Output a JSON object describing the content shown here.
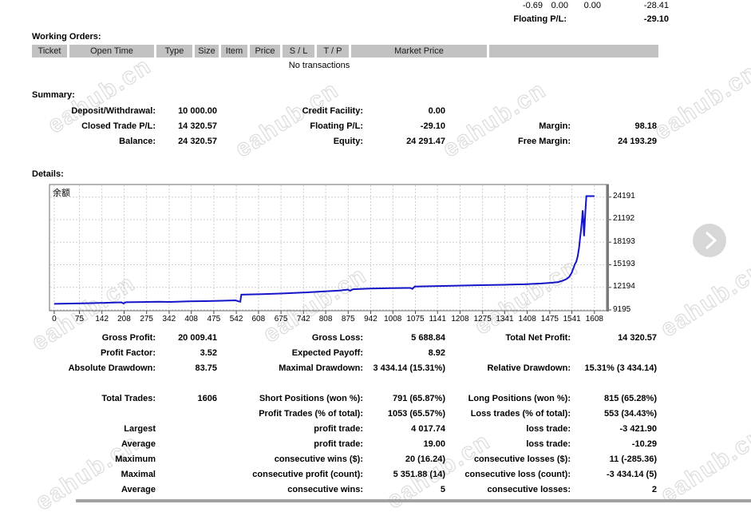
{
  "watermark": {
    "text": "eahub.cn"
  },
  "top_strip": {
    "values": [
      "-0.69",
      "0.00",
      "0.00",
      "-28.41"
    ],
    "label": "Floating P/L:",
    "value": "-29.10"
  },
  "working_orders": {
    "title": "Working Orders:",
    "columns": [
      "Ticket",
      "Open Time",
      "Type",
      "Size",
      "Item",
      "Price",
      "S / L",
      "T / P",
      "Market Price",
      ""
    ],
    "empty_message": "No transactions"
  },
  "summary": {
    "title": "Summary:",
    "deposit_withdrawal": {
      "label": "Deposit/Withdrawal:",
      "value": "10 000.00"
    },
    "credit_facility": {
      "label": "Credit Facility:",
      "value": "0.00"
    },
    "closed_trade_pl": {
      "label": "Closed Trade P/L:",
      "value": "14 320.57"
    },
    "floating_pl": {
      "label": "Floating P/L:",
      "value": "-29.10"
    },
    "margin": {
      "label": "Margin:",
      "value": "98.18"
    },
    "balance": {
      "label": "Balance:",
      "value": "24 320.57"
    },
    "equity": {
      "label": "Equity:",
      "value": "24 291.47"
    },
    "free_margin": {
      "label": "Free Margin:",
      "value": "24 193.29"
    }
  },
  "details": {
    "title": "Details:"
  },
  "chart_data": {
    "type": "line",
    "title": "余额",
    "xlabel": "",
    "ylabel": "",
    "grid": true,
    "legend": "none",
    "line_color": "#1414c8",
    "x_ticks": [
      0,
      75,
      142,
      208,
      275,
      342,
      408,
      475,
      542,
      608,
      675,
      742,
      808,
      875,
      942,
      1008,
      1075,
      1141,
      1208,
      1275,
      1341,
      1408,
      1475,
      1541,
      1608
    ],
    "y_ticks": [
      9195,
      12194,
      15193,
      18193,
      21192,
      24191
    ],
    "xlim": [
      -14,
      1644
    ],
    "ylim": [
      9090,
      25860
    ],
    "series": [
      {
        "name": "Balance (余额)",
        "points": [
          [
            0,
            10000
          ],
          [
            50,
            10045
          ],
          [
            100,
            10090
          ],
          [
            150,
            10140
          ],
          [
            200,
            10205
          ],
          [
            206,
            10060
          ],
          [
            213,
            10215
          ],
          [
            260,
            10245
          ],
          [
            310,
            10280
          ],
          [
            345,
            10260
          ],
          [
            400,
            10330
          ],
          [
            450,
            10365
          ],
          [
            500,
            10415
          ],
          [
            540,
            10465
          ],
          [
            549,
            10330
          ],
          [
            554,
            10285
          ],
          [
            557,
            11220
          ],
          [
            620,
            11300
          ],
          [
            680,
            11385
          ],
          [
            740,
            11500
          ],
          [
            800,
            11650
          ],
          [
            850,
            11780
          ],
          [
            874,
            11900
          ],
          [
            881,
            11745
          ],
          [
            889,
            11950
          ],
          [
            940,
            12030
          ],
          [
            1000,
            12090
          ],
          [
            1060,
            12115
          ],
          [
            1066,
            11985
          ],
          [
            1073,
            12300
          ],
          [
            1130,
            12360
          ],
          [
            1200,
            12425
          ],
          [
            1270,
            12485
          ],
          [
            1340,
            12535
          ],
          [
            1400,
            12605
          ],
          [
            1450,
            12705
          ],
          [
            1480,
            12805
          ],
          [
            1500,
            12905
          ],
          [
            1515,
            13100
          ],
          [
            1525,
            13305
          ],
          [
            1533,
            13600
          ],
          [
            1540,
            14100
          ],
          [
            1546,
            14800
          ],
          [
            1550,
            15300
          ],
          [
            1554,
            15610
          ],
          [
            1558,
            16300
          ],
          [
            1562,
            17400
          ],
          [
            1565,
            18600
          ],
          [
            1568,
            19800
          ],
          [
            1571,
            21200
          ],
          [
            1573,
            22430
          ],
          [
            1575,
            21000
          ],
          [
            1577,
            18996
          ],
          [
            1579,
            20500
          ],
          [
            1581,
            22300
          ],
          [
            1584,
            24320
          ],
          [
            1608,
            24320
          ]
        ]
      }
    ]
  },
  "results": {
    "gross_profit": {
      "label": "Gross Profit:",
      "value": "20 009.41"
    },
    "gross_loss": {
      "label": "Gross Loss:",
      "value": "5 688.84"
    },
    "total_net_profit": {
      "label": "Total Net Profit:",
      "value": "14 320.57"
    },
    "profit_factor": {
      "label": "Profit Factor:",
      "value": "3.52"
    },
    "expected_payoff": {
      "label": "Expected Payoff:",
      "value": "8.92"
    },
    "absolute_drawdown": {
      "label": "Absolute Drawdown:",
      "value": "83.75"
    },
    "maximal_drawdown": {
      "label": "Maximal Drawdown:",
      "value": "3 434.14 (15.31%)"
    },
    "relative_drawdown": {
      "label": "Relative Drawdown:",
      "value": "15.31% (3 434.14)"
    },
    "total_trades": {
      "label": "Total Trades:",
      "value": "1606"
    },
    "short_positions": {
      "label": "Short Positions (won %):",
      "value": "791 (65.87%)"
    },
    "long_positions": {
      "label": "Long Positions (won %):",
      "value": "815 (65.28%)"
    },
    "profit_trades": {
      "label": "Profit Trades (% of total):",
      "value": "1053 (65.57%)"
    },
    "loss_trades": {
      "label": "Loss trades (% of total):",
      "value": "553 (34.43%)"
    },
    "largest": {
      "row_label": "Largest",
      "profit_label": "profit trade:",
      "profit_value": "4 017.74",
      "loss_label": "loss trade:",
      "loss_value": "-3 421.90"
    },
    "average_trade": {
      "row_label": "Average",
      "profit_label": "profit trade:",
      "profit_value": "19.00",
      "loss_label": "loss trade:",
      "loss_value": "-10.29"
    },
    "maximum": {
      "row_label": "Maximum",
      "wins_label": "consecutive wins ($):",
      "wins_value": "20 (16.24)",
      "losses_label": "consecutive losses ($):",
      "losses_value": "11 (-285.36)"
    },
    "maximal": {
      "row_label": "Maximal",
      "profit_label": "consecutive profit (count):",
      "profit_value": "5 351.88 (14)",
      "loss_label": "consecutive loss (count):",
      "loss_value": "-3 434.14 (5)"
    },
    "average_consecutive": {
      "row_label": "Average",
      "wins_label": "consecutive wins:",
      "wins_value": "5",
      "losses_label": "consecutive losses:",
      "losses_value": "2"
    }
  }
}
